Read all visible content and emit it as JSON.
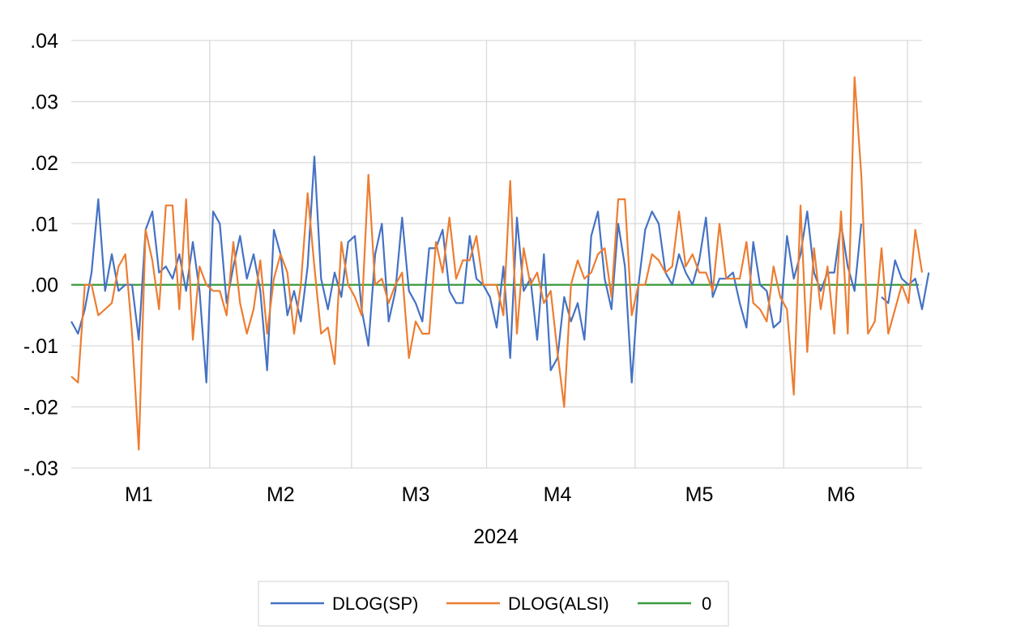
{
  "chart_data": {
    "type": "line",
    "year_label": "2024",
    "x_unit": "trading day (Jan–Jun 2024)",
    "month_labels": [
      "M1",
      "M2",
      "M3",
      "M4",
      "M5",
      "M6"
    ],
    "month_centers": [
      11,
      32,
      52,
      73,
      94,
      115
    ],
    "month_boundaries": [
      21,
      42,
      62,
      84,
      106
    ],
    "y_ticks": [
      0.04,
      0.03,
      0.02,
      0.01,
      0.0,
      -0.01,
      -0.02,
      -0.03
    ],
    "y_tick_labels": [
      ".04",
      ".03",
      ".02",
      ".01",
      ".00",
      "-.01",
      "-.02",
      "-.03"
    ],
    "ylim": [
      -0.03,
      0.04
    ],
    "xlim": [
      1,
      127
    ],
    "grid": true,
    "legend_position": "bottom",
    "colors": {
      "sp": "#4472C4",
      "alsi": "#ED7D31",
      "zero": "#3A9A3A",
      "grid": "#D9D9D9"
    },
    "series": [
      {
        "name": "DLOG(SP)",
        "color": "#4472C4",
        "values": [
          -0.006,
          -0.008,
          -0.004,
          0.002,
          0.014,
          -0.001,
          0.005,
          -0.001,
          0.0,
          0.0,
          -0.009,
          0.009,
          0.012,
          0.002,
          0.003,
          0.001,
          0.005,
          -0.001,
          0.007,
          -0.001,
          -0.016,
          0.012,
          0.01,
          -0.003,
          0.003,
          0.008,
          0.001,
          0.005,
          -0.001,
          -0.014,
          0.009,
          0.005,
          -0.005,
          -0.001,
          -0.006,
          0.003,
          0.021,
          0.001,
          -0.004,
          0.002,
          -0.002,
          0.007,
          0.008,
          -0.004,
          -0.01,
          0.005,
          0.01,
          -0.006,
          -0.001,
          0.011,
          -0.001,
          -0.003,
          -0.006,
          0.006,
          0.006,
          0.009,
          -0.001,
          -0.003,
          -0.003,
          0.008,
          0.001,
          0.0,
          -0.002,
          -0.007,
          0.003,
          -0.012,
          0.011,
          -0.001,
          0.001,
          -0.009,
          0.005,
          -0.014,
          -0.012,
          -0.002,
          -0.006,
          -0.003,
          -0.009,
          0.008,
          0.012,
          0.001,
          -0.004,
          0.01,
          0.003,
          -0.016,
          0.0,
          0.009,
          0.012,
          0.01,
          0.002,
          0.0,
          0.005,
          0.002,
          0.0,
          0.004,
          0.011,
          -0.002,
          0.001,
          0.001,
          0.002,
          -0.003,
          -0.007,
          0.007,
          0.0,
          -0.001,
          -0.007,
          -0.006,
          0.008,
          0.001,
          0.005,
          0.012,
          0.002,
          -0.001,
          0.002,
          0.002,
          0.01,
          0.003,
          -0.001,
          0.01,
          null,
          null,
          -0.002,
          -0.003,
          0.004,
          0.001,
          0.0,
          0.001,
          -0.004,
          0.002
        ]
      },
      {
        "name": "DLOG(ALSI)",
        "color": "#ED7D31",
        "values": [
          -0.015,
          -0.016,
          0.0,
          0.0,
          -0.005,
          -0.004,
          -0.003,
          0.003,
          0.005,
          -0.008,
          -0.027,
          0.009,
          0.004,
          -0.004,
          0.013,
          0.013,
          -0.004,
          0.014,
          -0.009,
          0.003,
          0.0,
          -0.001,
          -0.001,
          -0.005,
          0.007,
          -0.003,
          -0.008,
          -0.004,
          0.004,
          -0.008,
          0.001,
          0.005,
          0.002,
          -0.008,
          0.0,
          0.015,
          0.003,
          -0.008,
          -0.007,
          -0.013,
          0.007,
          0.0,
          -0.002,
          -0.005,
          0.018,
          0.0,
          0.001,
          -0.003,
          0.0,
          0.002,
          -0.012,
          -0.006,
          -0.008,
          -0.008,
          0.007,
          0.002,
          0.011,
          0.001,
          0.004,
          0.004,
          0.008,
          0.0,
          0.0,
          0.0,
          -0.005,
          0.017,
          -0.008,
          0.006,
          0.0,
          0.002,
          -0.003,
          -0.001,
          -0.011,
          -0.02,
          0.0,
          0.004,
          0.001,
          0.002,
          0.005,
          0.006,
          -0.002,
          0.014,
          0.014,
          -0.005,
          0.0,
          0.0,
          0.005,
          0.004,
          0.002,
          0.003,
          0.012,
          0.003,
          0.005,
          0.002,
          0.002,
          -0.001,
          0.01,
          0.001,
          0.001,
          0.001,
          0.007,
          -0.003,
          -0.004,
          -0.006,
          0.003,
          -0.002,
          -0.004,
          -0.018,
          0.013,
          -0.011,
          0.006,
          -0.004,
          0.003,
          -0.008,
          0.012,
          -0.008,
          0.034,
          0.018,
          -0.008,
          -0.006,
          0.006,
          -0.008,
          -0.004,
          0.0,
          -0.003,
          0.009,
          0.002
        ]
      },
      {
        "name": "0",
        "color": "#3A9A3A",
        "values": [
          0,
          0
        ]
      }
    ]
  }
}
